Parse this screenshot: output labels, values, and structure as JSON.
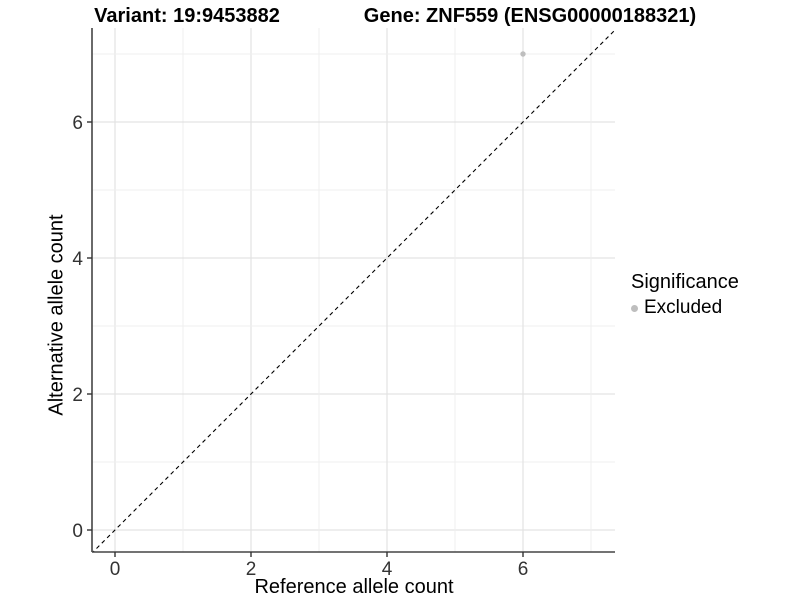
{
  "chart_data": {
    "type": "scatter",
    "title_left": "Variant: 19:9453882",
    "title_right": "Gene: ZNF559 (ENSG00000188321)",
    "xlabel": "Reference allele count",
    "ylabel": "Alternative allele count",
    "xlim": [
      -0.35,
      7.35
    ],
    "ylim": [
      -0.35,
      7.35
    ],
    "x_ticks": [
      0,
      2,
      4,
      6
    ],
    "y_ticks": [
      0,
      2,
      4,
      6
    ],
    "grid_interval": 1,
    "grid": true,
    "points": [
      {
        "x": 6,
        "y": 7,
        "series": "Excluded"
      }
    ],
    "reference_line": {
      "type": "identity",
      "style": "dashed",
      "color": "#000000"
    },
    "legend": {
      "title": "Significance",
      "position": "right",
      "items": [
        {
          "label": "Excluded",
          "color": "#bebebe"
        }
      ]
    },
    "colors": {
      "point_excluded": "#bebebe",
      "grid_major": "#e3e3e3",
      "grid_minor": "#efefef",
      "axis_line": "#454545",
      "tick_mark": "#333333",
      "tick_label": "#333333",
      "background": "#ffffff"
    }
  }
}
